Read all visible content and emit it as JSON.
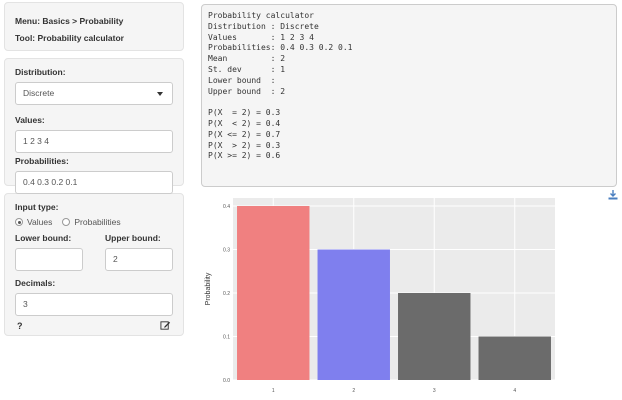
{
  "menu": {
    "line1": "Menu: Basics > Probability",
    "line2": "Tool: Probability calculator"
  },
  "distribution": {
    "label": "Distribution:",
    "selected": "Discrete"
  },
  "values_input": {
    "label": "Values:",
    "value": "1 2 3 4"
  },
  "probabilities_input": {
    "label": "Probabilities:",
    "value": "0.4 0.3 0.2 0.1"
  },
  "input_type": {
    "label": "Input type:",
    "options": [
      "Values",
      "Probabilities"
    ],
    "selected": "Values"
  },
  "lower_bound": {
    "label": "Lower bound:",
    "value": ""
  },
  "upper_bound": {
    "label": "Upper bound:",
    "value": "2"
  },
  "decimals": {
    "label": "Decimals:",
    "value": "3"
  },
  "footer": {
    "help": "?"
  },
  "output_lines": [
    "Probability calculator",
    "Distribution : Discrete",
    "Values       : 1 2 3 4",
    "Probabilities: 0.4 0.3 0.2 0.1",
    "Mean         : 2",
    "St. dev      : 1",
    "Lower bound  :",
    "Upper bound  : 2",
    "",
    "P(X  = 2) = 0.3",
    "P(X  < 2) = 0.4",
    "P(X <= 2) = 0.7",
    "P(X  > 2) = 0.3",
    "P(X >= 2) = 0.6"
  ],
  "colors": {
    "bar_below": "#f08080",
    "bar_equal": "#7f7fee",
    "bar_above": "#6b6b6b",
    "panel_bg": "#ebebeb"
  },
  "chart_data": {
    "type": "bar",
    "categories": [
      "1",
      "2",
      "3",
      "4"
    ],
    "values": [
      0.4,
      0.3,
      0.2,
      0.1
    ],
    "bar_colors": [
      "#f08080",
      "#7f7fee",
      "#6b6b6b",
      "#6b6b6b"
    ],
    "ylabel": "Probability",
    "xlabel": "",
    "ylim": [
      0,
      0.4
    ],
    "yticks": [
      "0.0",
      "0.1",
      "0.2",
      "0.3",
      "0.4"
    ],
    "grid": true
  }
}
